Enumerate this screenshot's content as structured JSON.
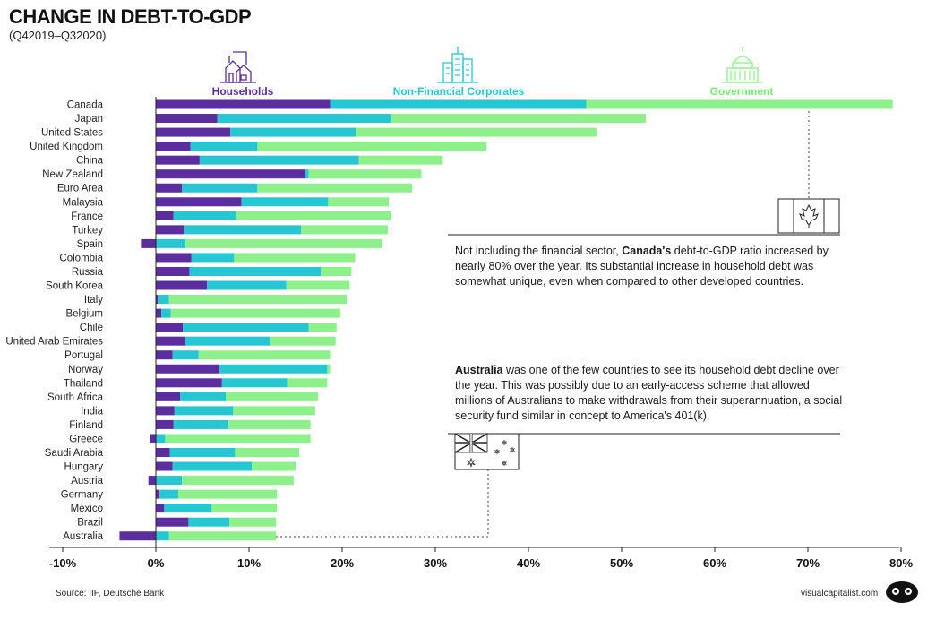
{
  "title": "CHANGE IN DEBT-TO-GDP",
  "subtitle": "(Q42019–Q32020)",
  "source": "Source: IIF, Deutsche Bank",
  "credit": "visualcapitalist.com",
  "colors": {
    "households": "#5b2d9e",
    "non_financial_corporates": "#26c6d2",
    "government": "#8ef08a",
    "households_label": "#5b2d9e",
    "corporates_label": "#2bc4d0",
    "government_label": "#7ee87a"
  },
  "icons": {
    "households": "houses-icon",
    "non_financial_corporates": "office-buildings-icon",
    "government": "capitol-building-icon",
    "canada": "canada-flag-icon",
    "australia": "australia-flag-icon",
    "logo": "visual-capitalist-logo-icon"
  },
  "notes": {
    "canada": {
      "pre": "Not including the financial sector, ",
      "bold": "Canada's",
      "post": " debt-to-GDP ratio increased by nearly 80% over the year. Its substantial increase in household debt was somewhat unique, even when compared to other developed countries."
    },
    "australia": {
      "pre": "",
      "bold": "Australia",
      "post": " was one of the few countries to see its household debt decline over the year. This was possibly due to an early-access scheme that allowed millions of Australians to make withdrawals from their superannuation, a social security fund similar in concept to America's 401(k)."
    }
  },
  "chart_data": {
    "type": "bar",
    "orientation": "horizontal",
    "stacked": true,
    "title": "CHANGE IN DEBT-TO-GDP",
    "subtitle": "(Q42019–Q32020)",
    "xlim": [
      -10,
      80
    ],
    "x_ticks": [
      "-10%",
      "0%",
      "10%",
      "20%",
      "30%",
      "40%",
      "50%",
      "60%",
      "70%",
      "80%"
    ],
    "x_tick_values": [
      -10,
      0,
      10,
      20,
      30,
      40,
      50,
      60,
      70,
      80
    ],
    "grid": false,
    "legend_position": "top",
    "categories": [
      "Canada",
      "Japan",
      "United States",
      "United Kingdom",
      "China",
      "New Zealand",
      "Euro Area",
      "Malaysia",
      "France",
      "Turkey",
      "Spain",
      "Colombia",
      "Russia",
      "South Korea",
      "Italy",
      "Belgium",
      "Chile",
      "United Arab Emirates",
      "Portugal",
      "Norway",
      "Thailand",
      "South Africa",
      "India",
      "Finland",
      "Greece",
      "Saudi Arabia",
      "Hungary",
      "Austria",
      "Germany",
      "Mexico",
      "Brazil",
      "Australia"
    ],
    "series": [
      {
        "name": "Households",
        "values": [
          18.7,
          6.6,
          8.0,
          3.7,
          4.7,
          16.0,
          2.8,
          9.2,
          1.9,
          3.0,
          -1.6,
          3.8,
          3.6,
          5.5,
          0.2,
          0.6,
          2.9,
          3.1,
          1.8,
          6.8,
          7.1,
          2.6,
          2.0,
          1.9,
          -0.6,
          1.5,
          1.8,
          -0.8,
          0.4,
          0.9,
          3.5,
          -3.9
        ]
      },
      {
        "name": "Non-Financial Corporates",
        "values": [
          27.5,
          18.6,
          13.5,
          7.2,
          17.1,
          0.4,
          8.1,
          9.3,
          6.7,
          12.6,
          3.2,
          4.6,
          14.1,
          8.5,
          1.2,
          1.0,
          13.5,
          9.2,
          2.8,
          11.6,
          7.0,
          4.9,
          6.3,
          5.9,
          1.0,
          7.0,
          8.5,
          2.8,
          2.0,
          5.1,
          4.4,
          1.4
        ]
      },
      {
        "name": "Government",
        "values": [
          32.9,
          27.4,
          25.8,
          24.6,
          9.0,
          12.1,
          16.6,
          6.5,
          16.6,
          9.3,
          21.1,
          13.0,
          3.3,
          6.8,
          19.1,
          18.2,
          3.0,
          7.0,
          14.1,
          0.3,
          4.3,
          9.9,
          8.8,
          8.8,
          15.6,
          6.9,
          4.7,
          12.0,
          10.6,
          7.0,
          5.0,
          11.5
        ]
      }
    ]
  }
}
